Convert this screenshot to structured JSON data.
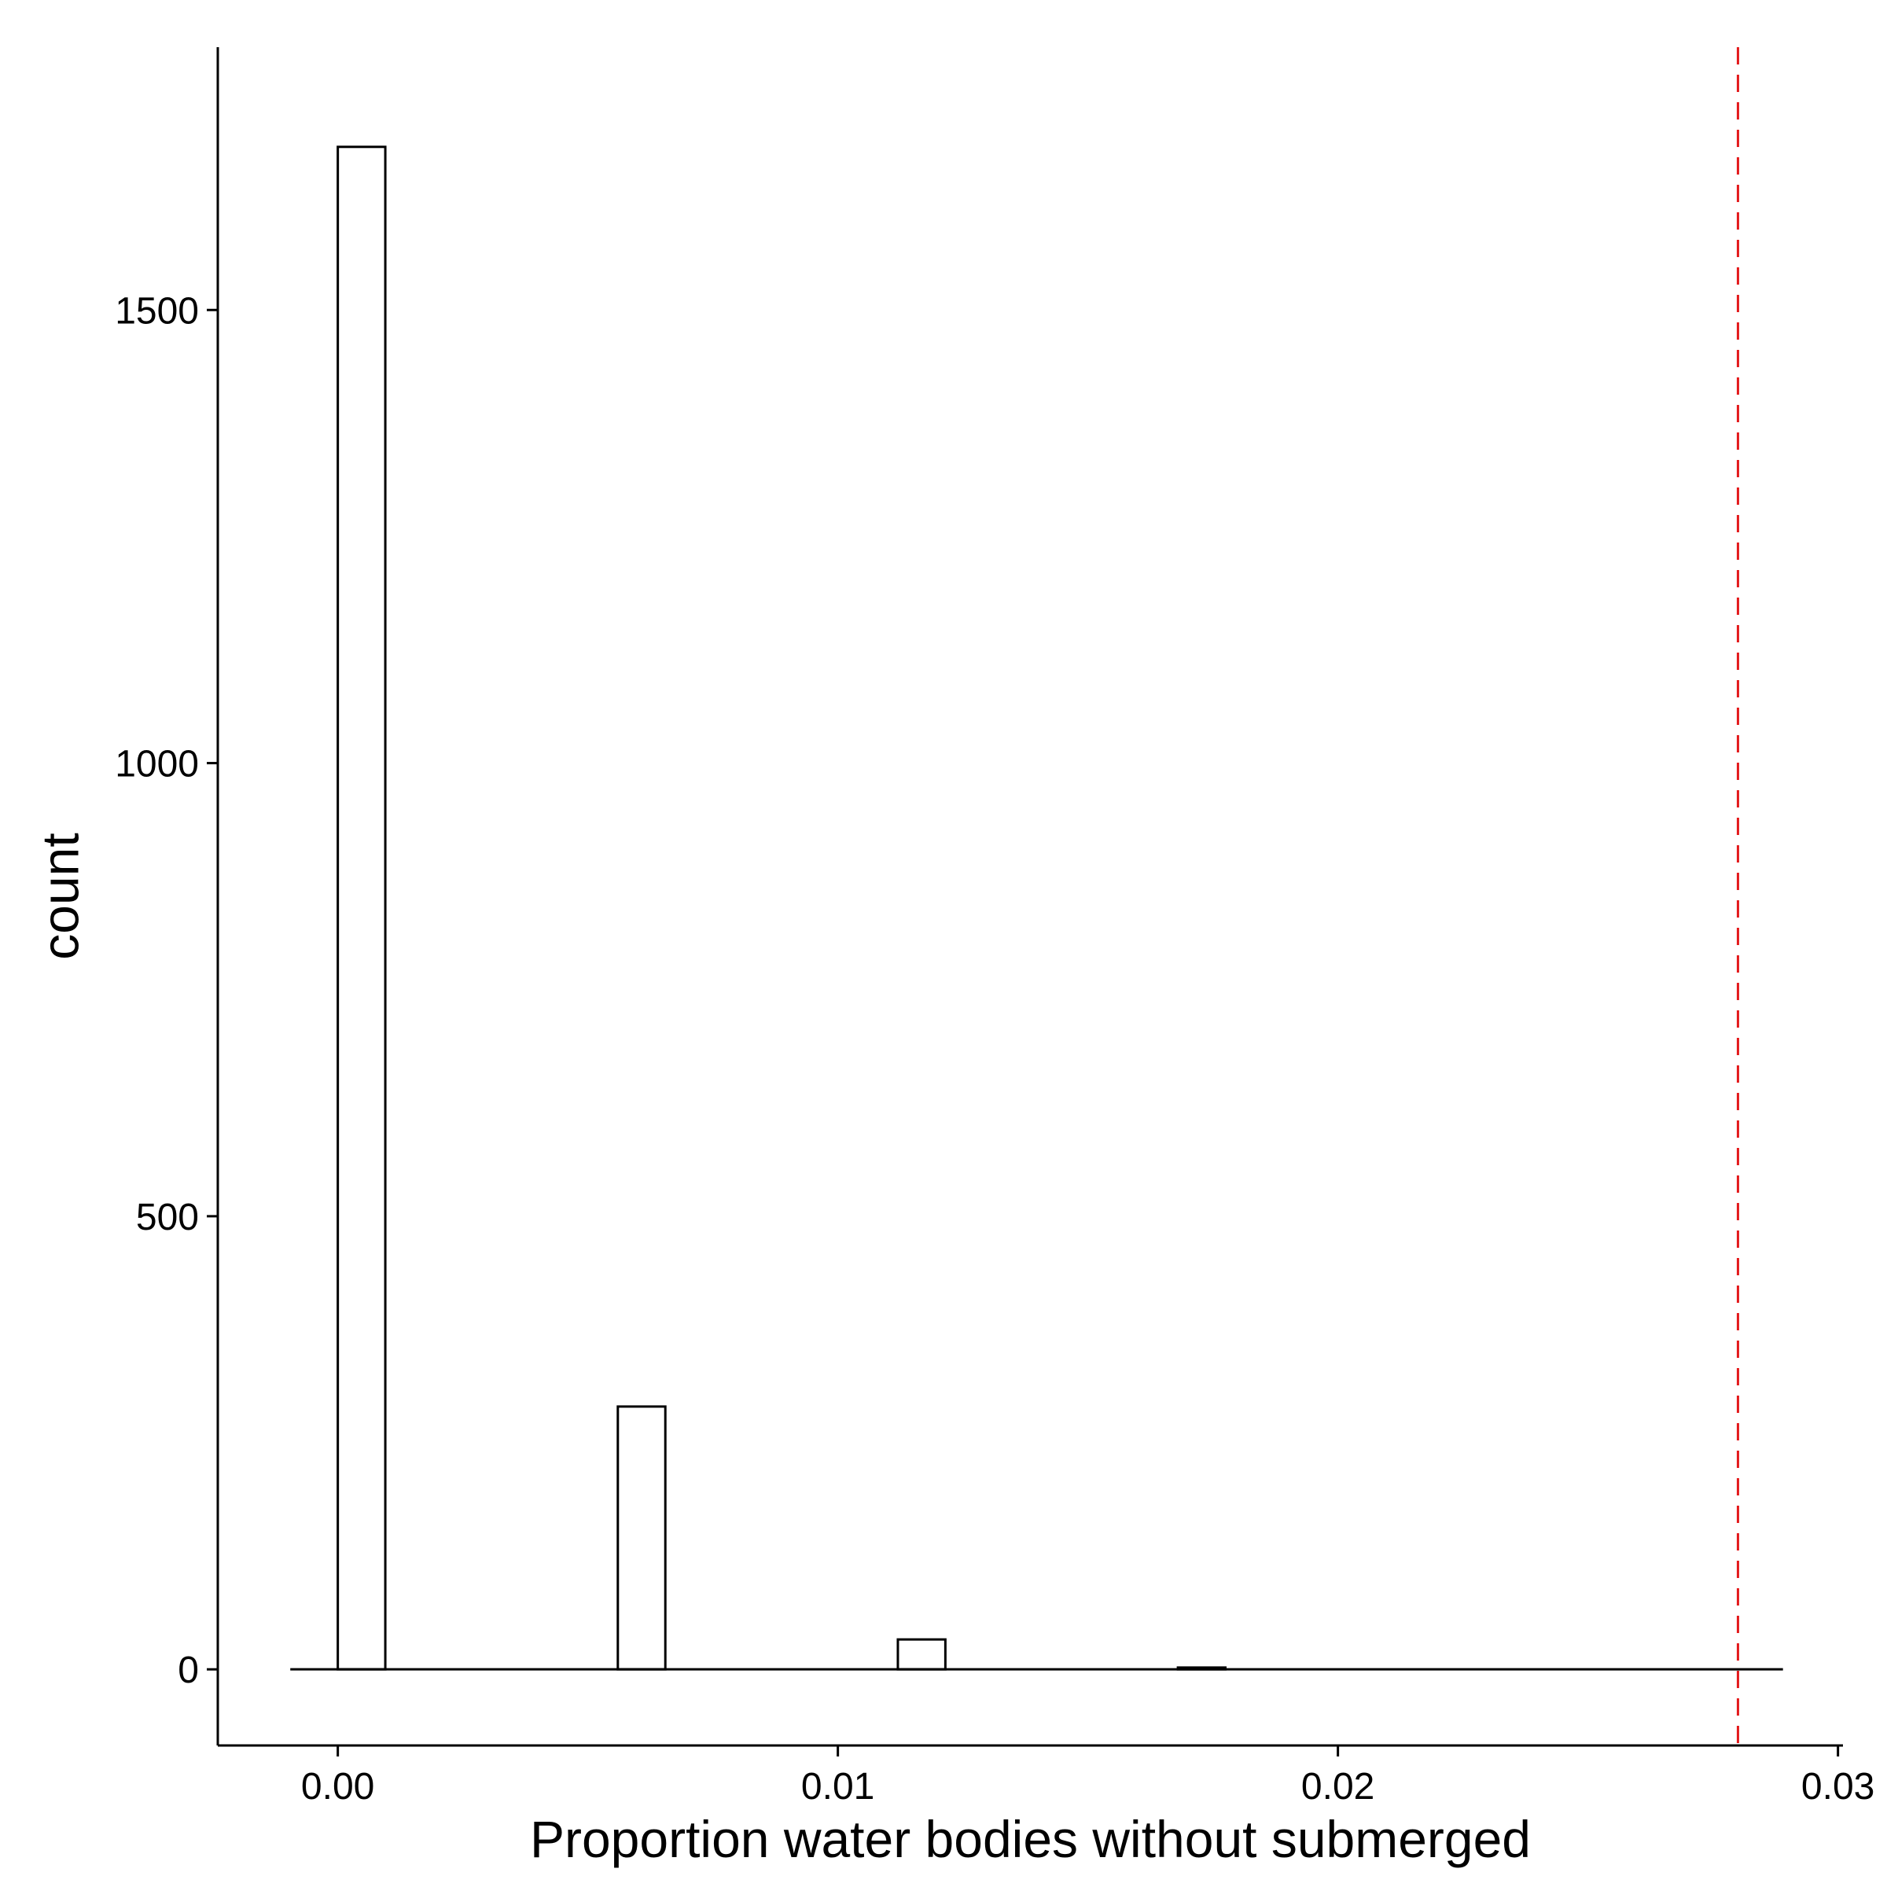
{
  "chart_data": {
    "type": "bar",
    "title": "",
    "xlabel": "Proportion water bodies without submerged",
    "ylabel": "count",
    "xlim": [
      -0.0024,
      0.0301
    ],
    "ylim": [
      -84,
      1790
    ],
    "x_ticks": [
      {
        "value": 0.0,
        "label": "0.00"
      },
      {
        "value": 0.01,
        "label": "0.01"
      },
      {
        "value": 0.02,
        "label": "0.02"
      },
      {
        "value": 0.03,
        "label": "0.03"
      }
    ],
    "y_ticks": [
      {
        "value": 0,
        "label": "0"
      },
      {
        "value": 500,
        "label": "500"
      },
      {
        "value": 1000,
        "label": "1000"
      },
      {
        "value": 1500,
        "label": "1500"
      }
    ],
    "bin_width": 0.00095,
    "x": [
      0.0,
      0.0056,
      0.0112,
      0.0168
    ],
    "values": [
      1680,
      290,
      33,
      2
    ],
    "baseline_range": [
      -0.00095,
      0.0289
    ],
    "reference_line": {
      "value": 0.028,
      "color": "#e31a1c",
      "style": "dashed"
    },
    "bar_fill": "#ffffff",
    "bar_stroke": "#000000",
    "grid": false,
    "legend": "none"
  }
}
